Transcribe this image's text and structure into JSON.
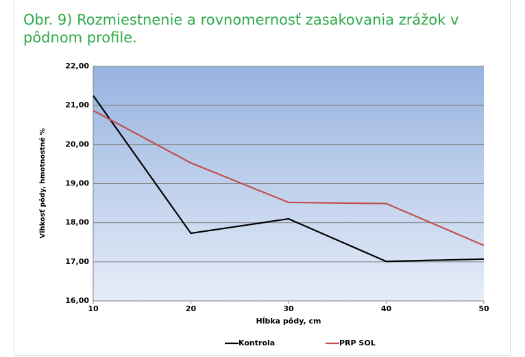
{
  "chart_data": {
    "type": "line",
    "title": "Obr. 9) Rozmiestnenie a rovnomernosť zasakovania zrážok v pôdnom profile.",
    "x_label": "Hĺbka pôdy, cm",
    "y_label": "Vlhkosť pôdy,  hmotnostné %",
    "x": [
      10,
      20,
      30,
      40,
      50
    ],
    "series": [
      {
        "name": "Kontrola",
        "color": "#000000",
        "values": [
          21.25,
          17.73,
          18.1,
          17.01,
          17.07
        ]
      },
      {
        "name": "PRP SOL",
        "color": "#c0504d",
        "values": [
          20.87,
          19.53,
          18.52,
          18.49,
          17.42
        ]
      }
    ],
    "xlim": [
      10,
      50
    ],
    "xticks": [
      10,
      20,
      30,
      40,
      50
    ],
    "ylim": [
      16,
      22
    ],
    "yticks": [
      {
        "value": 16,
        "label": "16,00"
      },
      {
        "value": 17,
        "label": "17,00"
      },
      {
        "value": 18,
        "label": "18,00"
      },
      {
        "value": 19,
        "label": "19,00"
      },
      {
        "value": 20,
        "label": "20,00"
      },
      {
        "value": 21,
        "label": "21,00"
      },
      {
        "value": 22,
        "label": "22,00"
      }
    ],
    "grid": true,
    "legend": "bottom"
  }
}
